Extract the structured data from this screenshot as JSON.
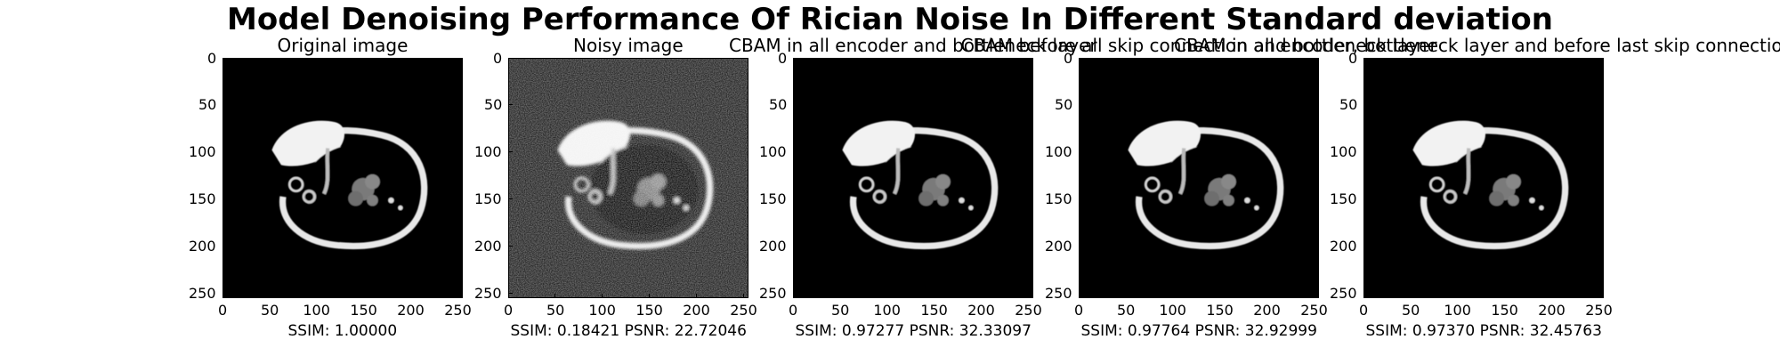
{
  "title": "Model Denoising Performance Of Rician Noise In Different Standard deviation",
  "chart_data": [
    {
      "type": "image",
      "title": "Original image",
      "caption": "SSIM: 1.00000",
      "metrics": {
        "ssim": 1.0
      },
      "noise": "none",
      "xlim": [
        0,
        255
      ],
      "ylim": [
        255,
        0
      ],
      "xticks": [
        0,
        50,
        100,
        150,
        200,
        250
      ],
      "yticks": [
        0,
        50,
        100,
        150,
        200,
        250
      ]
    },
    {
      "type": "image",
      "title": "Noisy image",
      "caption": "SSIM: 0.18421 PSNR: 22.72046",
      "metrics": {
        "ssim": 0.18421,
        "psnr": 22.72046
      },
      "noise": "rician",
      "xlim": [
        0,
        255
      ],
      "ylim": [
        255,
        0
      ],
      "xticks": [
        0,
        50,
        100,
        150,
        200,
        250
      ],
      "yticks": [
        0,
        50,
        100,
        150,
        200,
        250
      ]
    },
    {
      "type": "image",
      "title": "CBAM in all encoder and bottleneck layer",
      "caption": "SSIM: 0.97277 PSNR: 32.33097",
      "metrics": {
        "ssim": 0.97277,
        "psnr": 32.33097
      },
      "noise": "none",
      "xlim": [
        0,
        255
      ],
      "ylim": [
        255,
        0
      ],
      "xticks": [
        0,
        50,
        100,
        150,
        200,
        250
      ],
      "yticks": [
        0,
        50,
        100,
        150,
        200,
        250
      ]
    },
    {
      "type": "image",
      "title": "CBAM before all skip connection and bottleneck layer",
      "caption": "SSIM: 0.97764 PSNR: 32.92999",
      "metrics": {
        "ssim": 0.97764,
        "psnr": 32.92999
      },
      "noise": "none",
      "xlim": [
        0,
        255
      ],
      "ylim": [
        255,
        0
      ],
      "xticks": [
        0,
        50,
        100,
        150,
        200,
        250
      ],
      "yticks": [
        0,
        50,
        100,
        150,
        200,
        250
      ]
    },
    {
      "type": "image",
      "title": "CBAM in all encoder, bottleneck layer and before last skip connection",
      "caption": "SSIM: 0.97370 PSNR: 32.45763",
      "metrics": {
        "ssim": 0.9737,
        "psnr": 32.45763
      },
      "noise": "none",
      "xlim": [
        0,
        255
      ],
      "ylim": [
        255,
        0
      ],
      "xticks": [
        0,
        50,
        100,
        150,
        200,
        250
      ],
      "yticks": [
        0,
        50,
        100,
        150,
        200,
        250
      ]
    }
  ]
}
